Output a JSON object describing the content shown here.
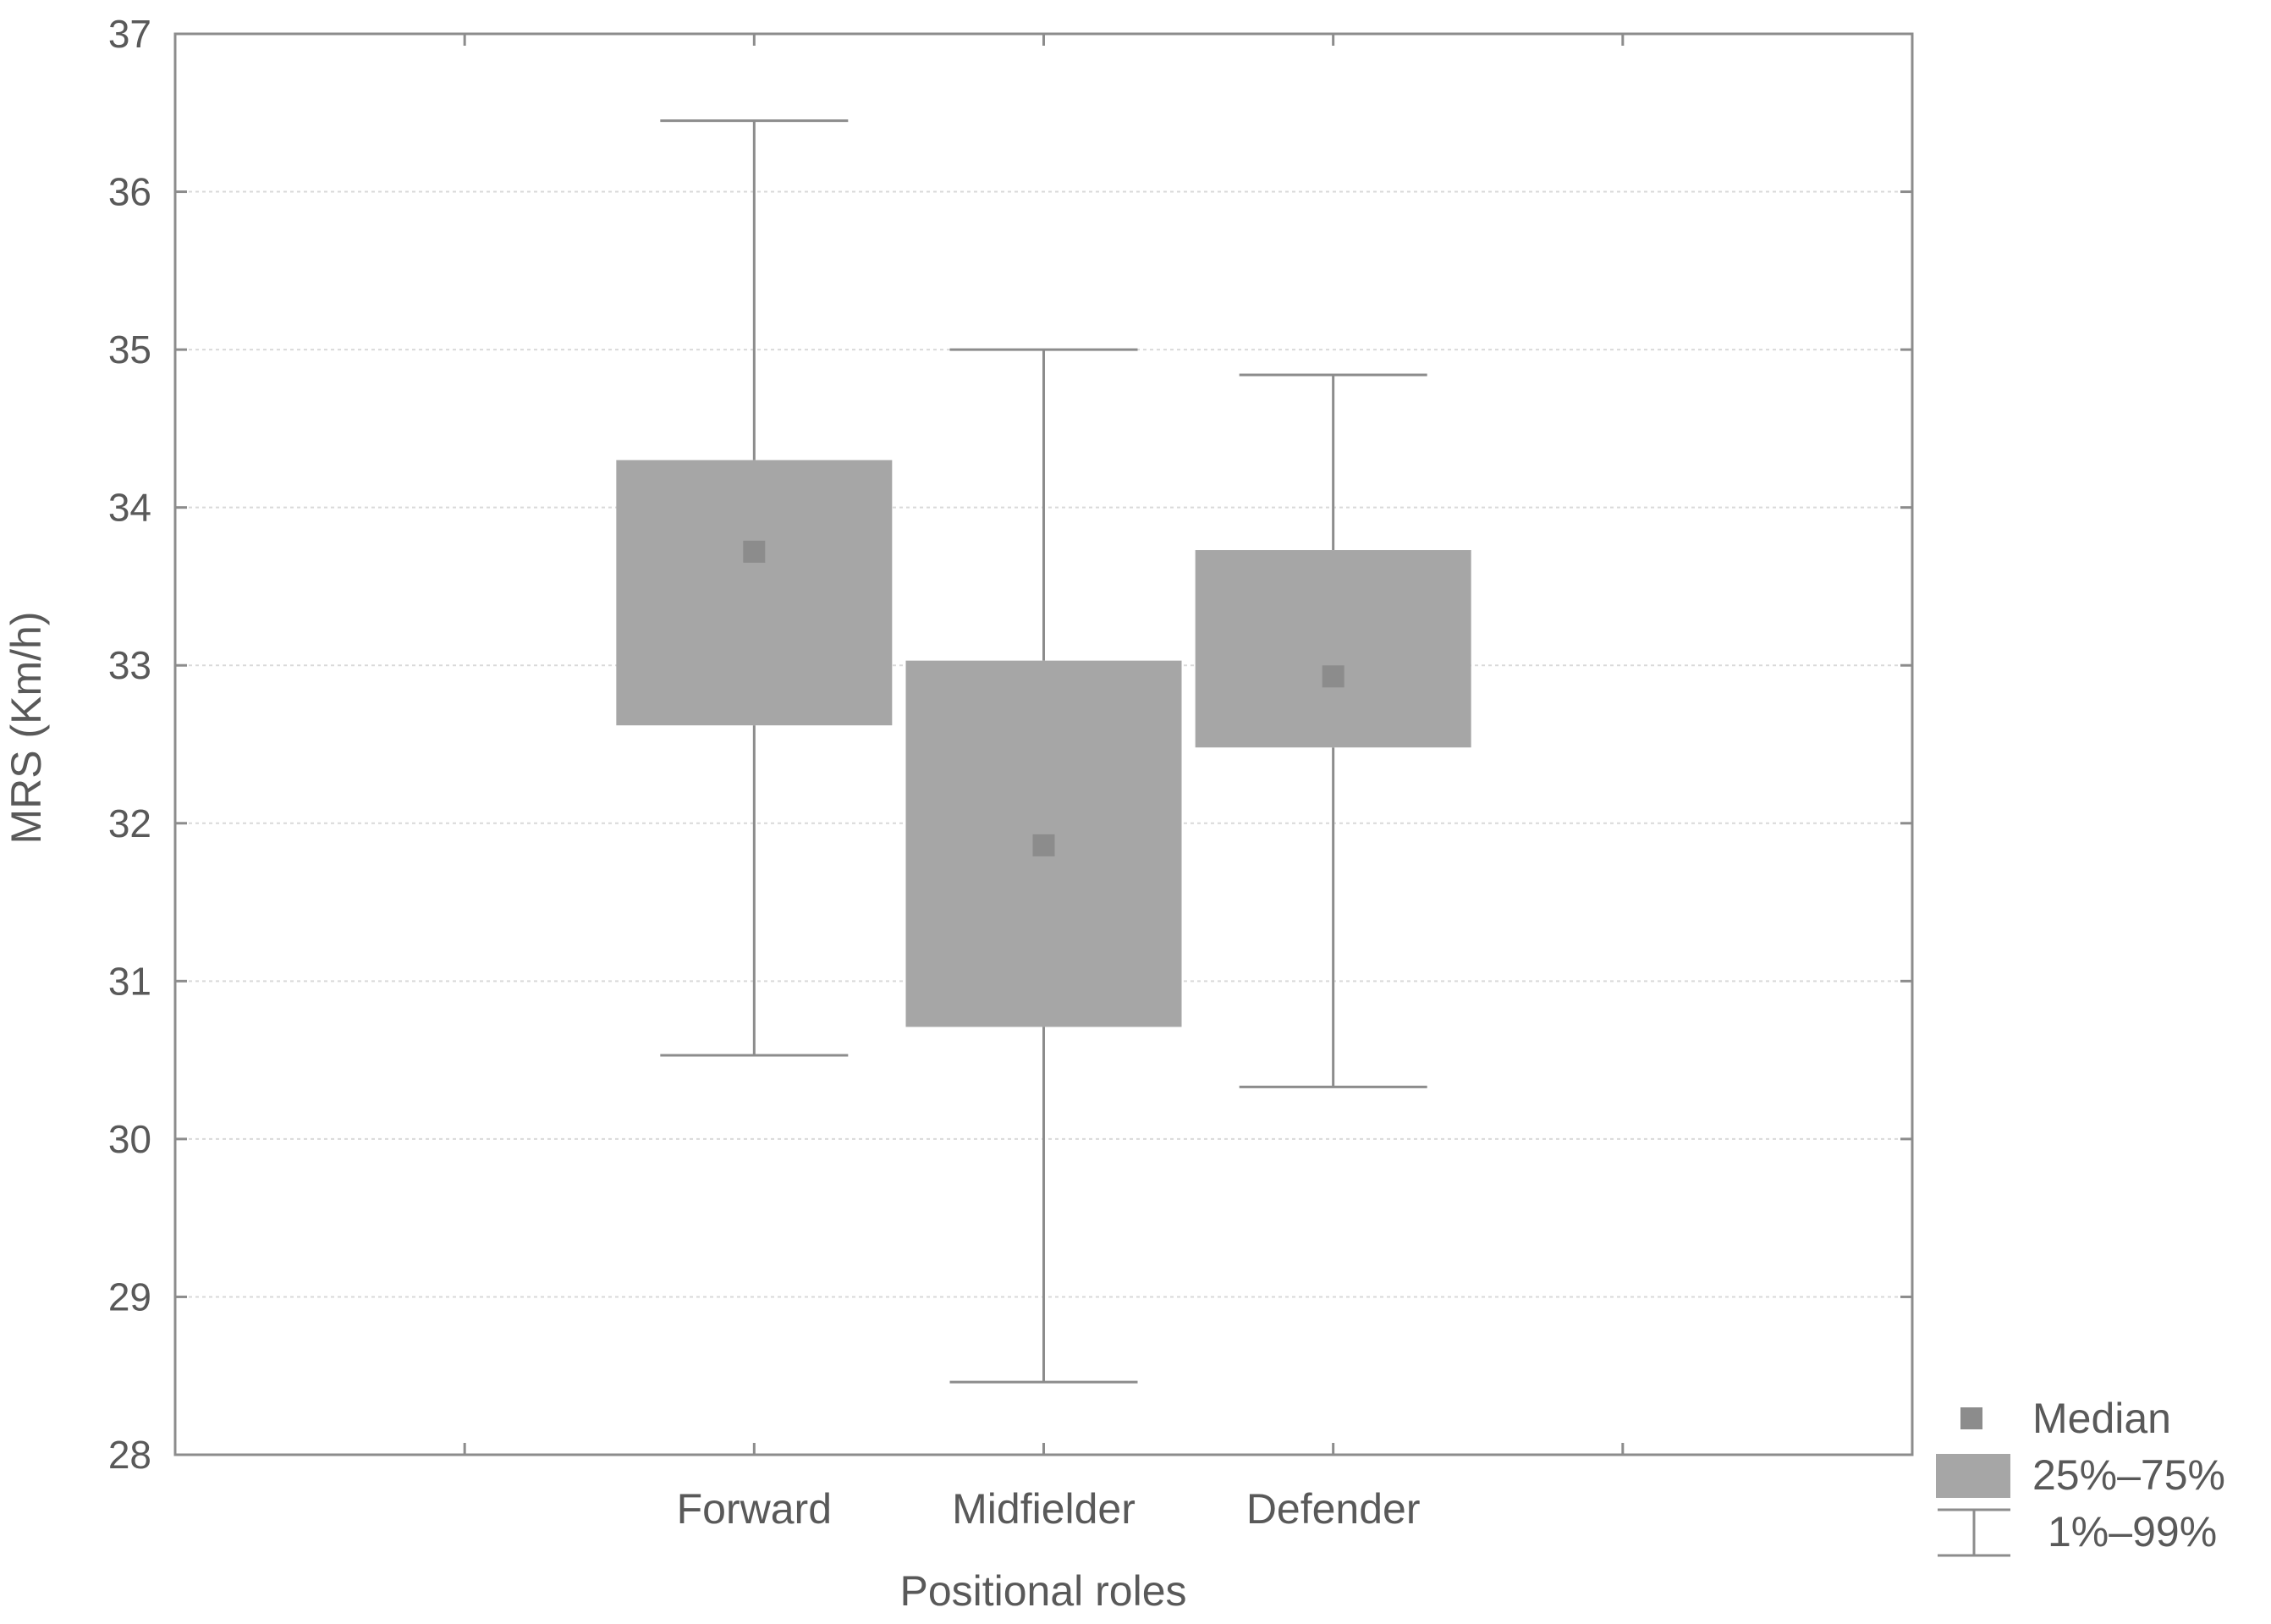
{
  "chart_data": {
    "type": "boxplot",
    "title": "",
    "xlabel": "Positional roles",
    "ylabel": "MRS (Km/h)",
    "ylim": [
      28,
      37
    ],
    "yticks": [
      "28",
      "29",
      "30",
      "31",
      "32",
      "33",
      "34",
      "35",
      "36",
      "37"
    ],
    "grid": true,
    "legend_position": "bottom-right",
    "categories": [
      "Forward",
      "Midfielder",
      "Defender"
    ],
    "series": [
      {
        "category": "Forward",
        "whisker_low": 30.53,
        "q1": 32.62,
        "median": 33.72,
        "q3": 34.3,
        "whisker_high": 36.45
      },
      {
        "category": "Midfielder",
        "whisker_low": 28.46,
        "q1": 30.71,
        "median": 31.86,
        "q3": 33.03,
        "whisker_high": 35.0
      },
      {
        "category": "Defender",
        "whisker_low": 30.33,
        "q1": 32.48,
        "median": 32.93,
        "q3": 33.73,
        "whisker_high": 34.84
      }
    ],
    "legend": {
      "median_label": "Median",
      "box_label": "25%–75%",
      "whisker_label": "1%–99%"
    },
    "colors": {
      "box": "#a6a6a6",
      "median": "#8c8c8c",
      "whisker": "#8c8c8c",
      "frame": "#8c8c8c",
      "grid": "#d9d9d9",
      "text": "#595959"
    }
  }
}
